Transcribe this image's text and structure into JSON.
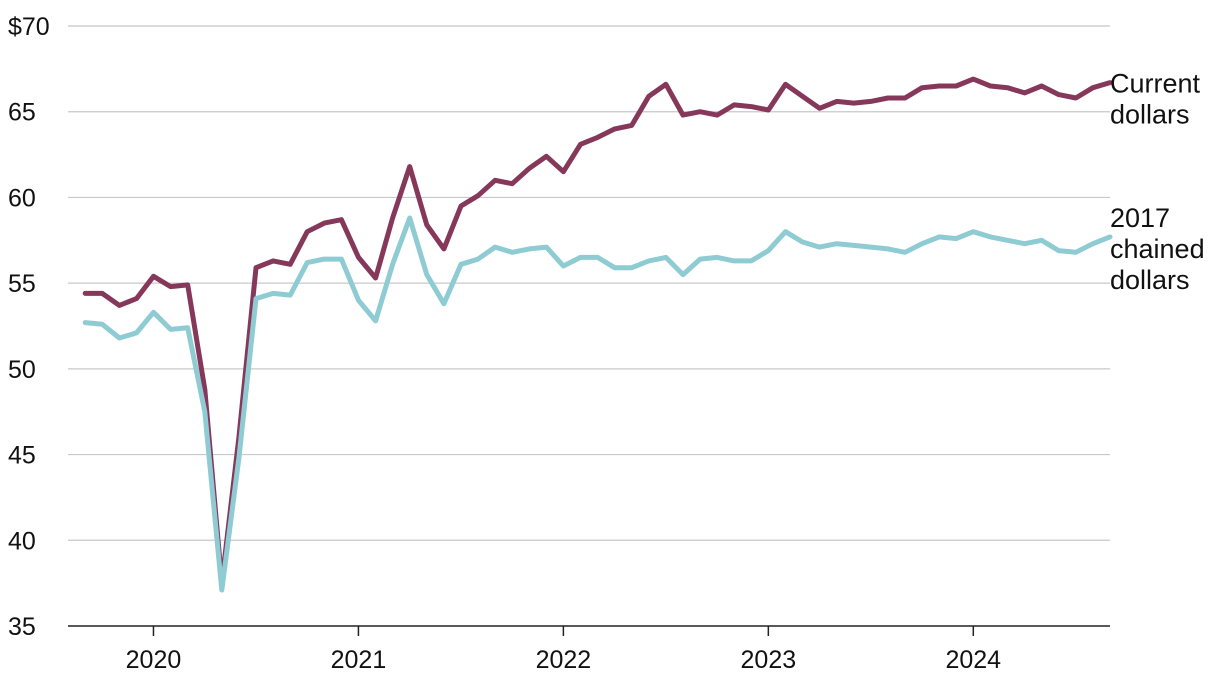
{
  "chart_data": {
    "type": "line",
    "title": "",
    "xlabel": "",
    "ylabel": "",
    "ylim": [
      35,
      70
    ],
    "yticks": [
      35,
      40,
      45,
      50,
      55,
      60,
      65,
      70
    ],
    "ytick_labels": [
      "35",
      "40",
      "45",
      "50",
      "55",
      "60",
      "65",
      "$70"
    ],
    "xlim": [
      2019.583,
      2024.667
    ],
    "xticks": [
      2020,
      2021,
      2022,
      2023,
      2024
    ],
    "xtick_labels": [
      "2020",
      "2021",
      "2022",
      "2023",
      "2024"
    ],
    "grid": true,
    "x_start": 2019.667,
    "x_step": 0.08333,
    "series": [
      {
        "name": "Current dollars",
        "label_lines": [
          "Current",
          "dollars"
        ],
        "color": "#86385B",
        "values": [
          54.4,
          54.4,
          53.7,
          54.1,
          55.4,
          54.8,
          54.9,
          48.8,
          37.5,
          46.0,
          55.9,
          56.3,
          56.1,
          58.0,
          58.5,
          58.7,
          56.5,
          55.3,
          58.8,
          61.8,
          58.4,
          57.0,
          59.5,
          60.1,
          61.0,
          60.8,
          61.7,
          62.4,
          61.5,
          63.1,
          63.5,
          64.0,
          64.2,
          65.9,
          66.6,
          64.8,
          65.0,
          64.8,
          65.4,
          65.3,
          65.1,
          66.6,
          65.9,
          65.2,
          65.6,
          65.5,
          65.6,
          65.8,
          65.8,
          66.4,
          66.5,
          66.5,
          66.9,
          66.5,
          66.4,
          66.1,
          66.5,
          66.0,
          65.8,
          66.4,
          66.7
        ]
      },
      {
        "name": "2017 chained dollars",
        "label_lines": [
          "2017",
          "chained",
          "dollars"
        ],
        "color": "#8ECBD3",
        "values": [
          52.7,
          52.6,
          51.8,
          52.1,
          53.3,
          52.3,
          52.4,
          47.5,
          37.1,
          44.8,
          54.1,
          54.4,
          54.3,
          56.2,
          56.4,
          56.4,
          54.0,
          52.8,
          56.1,
          58.8,
          55.5,
          53.8,
          56.1,
          56.4,
          57.1,
          56.8,
          57.0,
          57.1,
          56.0,
          56.5,
          56.5,
          55.9,
          55.9,
          56.3,
          56.5,
          55.5,
          56.4,
          56.5,
          56.3,
          56.3,
          56.9,
          58.0,
          57.4,
          57.1,
          57.3,
          57.2,
          57.1,
          57.0,
          56.8,
          57.3,
          57.7,
          57.6,
          58.0,
          57.7,
          57.5,
          57.3,
          57.5,
          56.9,
          56.8,
          57.3,
          57.7
        ]
      }
    ]
  }
}
